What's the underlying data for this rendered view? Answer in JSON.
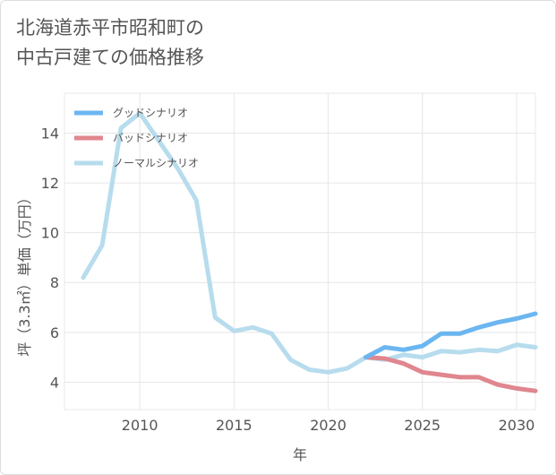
{
  "title_lines": [
    "北海道赤平市昭和町の",
    "中古戸建ての価格推移"
  ],
  "chart_data": {
    "type": "line",
    "title": "北海道赤平市昭和町の中古戸建ての価格推移",
    "xlabel": "年",
    "ylabel": "坪（3.3㎡）単価（万円）",
    "xlim": [
      2006,
      2031
    ],
    "ylim": [
      2.9,
      15.6
    ],
    "xticks": [
      2010,
      2015,
      2020,
      2025,
      2030
    ],
    "yticks": [
      4,
      6,
      8,
      10,
      12,
      14
    ],
    "legend_position": "top-left",
    "series": [
      {
        "name": "グッドシナリオ",
        "color": "#6cb6f0",
        "x": [
          2022,
          2023,
          2024,
          2025,
          2026,
          2027,
          2028,
          2029,
          2030,
          2031
        ],
        "y": [
          5.0,
          5.4,
          5.3,
          5.45,
          5.95,
          5.95,
          6.2,
          6.4,
          6.55,
          6.75
        ]
      },
      {
        "name": "バッドシナリオ",
        "color": "#e0868e",
        "x": [
          2022,
          2023,
          2024,
          2025,
          2026,
          2027,
          2028,
          2029,
          2030,
          2031
        ],
        "y": [
          5.0,
          4.95,
          4.75,
          4.4,
          4.3,
          4.2,
          4.2,
          3.9,
          3.75,
          3.65
        ]
      },
      {
        "name": "ノーマルシナリオ",
        "color": "#b7dced",
        "x": [
          2007,
          2008,
          2009,
          2010,
          2011,
          2012,
          2013,
          2014,
          2015,
          2016,
          2017,
          2018,
          2019,
          2020,
          2021,
          2022,
          2023,
          2024,
          2025,
          2026,
          2027,
          2028,
          2029,
          2030,
          2031
        ],
        "y": [
          8.2,
          9.5,
          14.2,
          14.8,
          13.7,
          12.6,
          11.3,
          6.6,
          6.05,
          6.2,
          5.95,
          4.9,
          4.5,
          4.4,
          4.55,
          5.0,
          4.9,
          5.1,
          5.0,
          5.25,
          5.2,
          5.3,
          5.25,
          5.5,
          5.4
        ]
      }
    ]
  }
}
